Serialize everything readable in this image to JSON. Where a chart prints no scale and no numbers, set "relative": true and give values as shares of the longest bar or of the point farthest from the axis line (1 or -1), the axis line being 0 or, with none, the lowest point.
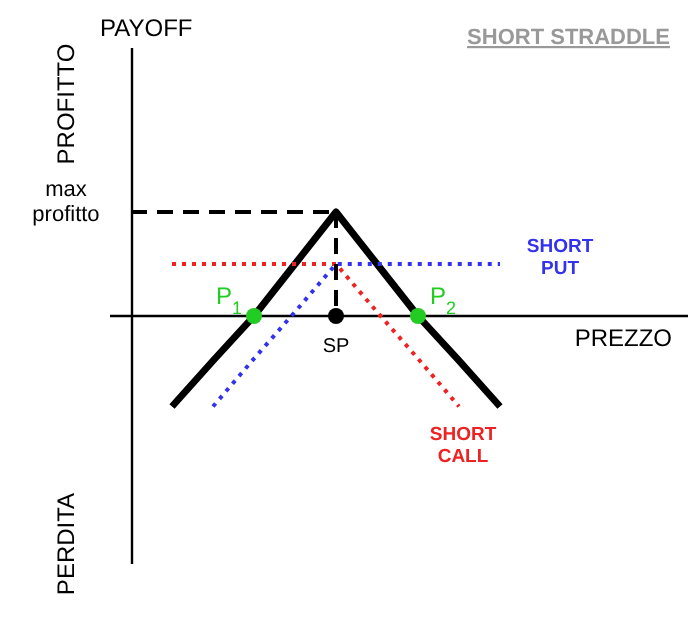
{
  "chart_data": {
    "type": "line",
    "title": "SHORT STRADDLE",
    "xlabel": "PREZZO",
    "annotations": [
      "PROFITTO",
      "PERDITA",
      "P$_{1}$",
      "P$_{2}$",
      "SP",
      "PAYOFF"
    ],
    "relative": true,
    "categories": [
      null,
      null,
      null,
      null,
      null,
      null,
      null,
      null,
      null,
      null,
      null
    ],
    "series": [
      {
        "color": "#000000",
        "line_style": "solid",
        "values": [
          null,
          -0.87,
          -0.43,
          0,
          0.5,
          1,
          0.5,
          0,
          -0.43,
          -0.87,
          null
        ]
      },
      {
        "name": "SHORT PUT",
        "color": "#3333ee",
        "line_style": "dotted",
        "values": [
          null,
          null,
          -0.87,
          -0.41,
          0.04,
          0.5,
          0.5,
          0.5,
          0.5,
          0.5,
          null
        ]
      },
      {
        "name": "SHORT CALL",
        "color": "#ee2222",
        "line_style": "dotted",
        "values": [
          null,
          0.5,
          0.5,
          0.5,
          0.5,
          0.5,
          0.04,
          -0.41,
          -0.87,
          null,
          null
        ]
      },
      {
        "name": "max profitto",
        "color": "#000000",
        "line_style": "dashed",
        "values": [
          1,
          1,
          1,
          1,
          1,
          1,
          null,
          null,
          null,
          null,
          null
        ]
      }
    ]
  }
}
